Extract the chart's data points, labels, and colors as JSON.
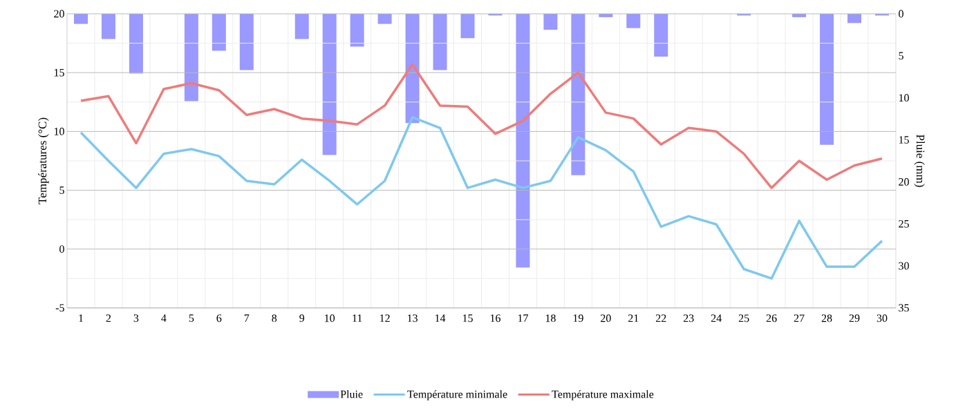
{
  "chart_data": {
    "type": "bar",
    "ylabel": "Températures (°C)",
    "y2label": "Pluie (mm)",
    "categories": [
      "1",
      "2",
      "3",
      "4",
      "5",
      "6",
      "7",
      "8",
      "9",
      "10",
      "11",
      "12",
      "13",
      "14",
      "15",
      "16",
      "17",
      "18",
      "19",
      "20",
      "21",
      "22",
      "23",
      "24",
      "25",
      "26",
      "27",
      "28",
      "29",
      "30"
    ],
    "series": [
      {
        "name": "Pluie",
        "axis": "y2",
        "color": "#9999ff",
        "values": [
          1.2,
          3.0,
          7.1,
          0,
          10.4,
          4.4,
          6.7,
          0,
          3.0,
          16.8,
          3.9,
          1.2,
          13.0,
          6.7,
          2.9,
          0.2,
          30.2,
          1.9,
          19.2,
          0.4,
          1.7,
          5.1,
          0,
          0,
          0.2,
          0,
          0.4,
          15.6,
          1.1,
          0.2
        ]
      },
      {
        "name": "Température minimale",
        "type": "line",
        "color": "#7ec8f0",
        "values": [
          9.9,
          7.5,
          5.2,
          8.1,
          8.5,
          7.9,
          5.8,
          5.5,
          7.6,
          5.8,
          3.8,
          5.8,
          11.2,
          10.3,
          5.2,
          5.9,
          5.2,
          5.8,
          9.5,
          8.4,
          6.6,
          1.9,
          2.8,
          2.1,
          -1.7,
          -2.5,
          2.4,
          -1.5,
          -1.5,
          0.7
        ]
      },
      {
        "name": "Température maximale",
        "type": "line",
        "color": "#ef7b7b",
        "values": [
          12.6,
          13.0,
          9.0,
          13.6,
          14.1,
          13.5,
          11.4,
          11.9,
          11.1,
          10.9,
          10.6,
          12.2,
          15.7,
          12.2,
          12.1,
          9.8,
          10.9,
          13.2,
          15.0,
          11.6,
          11.1,
          8.9,
          10.3,
          10.0,
          8.1,
          5.2,
          7.5,
          5.9,
          7.1,
          7.7
        ]
      }
    ],
    "ylim": [
      -5,
      20
    ],
    "yticks": [
      -5,
      0,
      5,
      10,
      15,
      20
    ],
    "y2lim": [
      35,
      0
    ],
    "y2ticks": [
      0,
      5,
      10,
      15,
      20,
      25,
      30,
      35
    ],
    "grid": true,
    "legend": "bottom",
    "marker": "none",
    "line_style": "solid"
  }
}
